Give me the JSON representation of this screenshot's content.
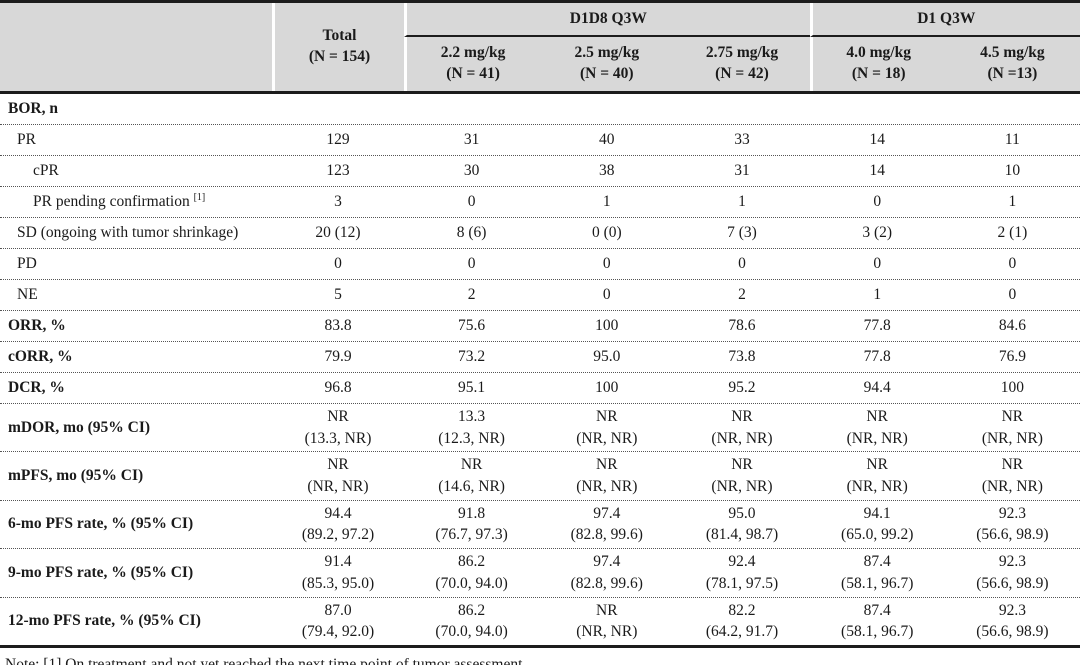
{
  "table": {
    "header": {
      "total": "Total\n(N = 154)",
      "groups": [
        {
          "label": "D1D8 Q3W",
          "cols": [
            "2.2 mg/kg\n(N = 41)",
            "2.5 mg/kg\n(N = 40)",
            "2.75 mg/kg\n(N = 42)"
          ]
        },
        {
          "label": "D1 Q3W",
          "cols": [
            "4.0 mg/kg\n(N = 18)",
            "4.5 mg/kg\n(N =13)"
          ]
        }
      ]
    },
    "rows": [
      {
        "label": "BOR, n",
        "bold": true,
        "indent": 0,
        "cells": [
          "",
          "",
          "",
          "",
          "",
          ""
        ]
      },
      {
        "label": "PR",
        "indent": 1,
        "cells": [
          "129",
          "31",
          "40",
          "33",
          "14",
          "11"
        ]
      },
      {
        "label": "cPR",
        "indent": 2,
        "cells": [
          "123",
          "30",
          "38",
          "31",
          "14",
          "10"
        ]
      },
      {
        "label": "PR pending confirmation",
        "sup": "[1]",
        "indent": 2,
        "cells": [
          "3",
          "0",
          "1",
          "1",
          "0",
          "1"
        ]
      },
      {
        "label": "SD (ongoing with tumor shrinkage)",
        "indent": 1,
        "cells": [
          "20 (12)",
          "8 (6)",
          "0 (0)",
          "7 (3)",
          "3 (2)",
          "2 (1)"
        ]
      },
      {
        "label": "PD",
        "indent": 1,
        "cells": [
          "0",
          "0",
          "0",
          "0",
          "0",
          "0"
        ]
      },
      {
        "label": "NE",
        "indent": 1,
        "cells": [
          "5",
          "2",
          "0",
          "2",
          "1",
          "0"
        ]
      },
      {
        "label": "ORR, %",
        "bold": true,
        "indent": 0,
        "cells": [
          "83.8",
          "75.6",
          "100",
          "78.6",
          "77.8",
          "84.6"
        ]
      },
      {
        "label": "cORR, %",
        "bold": true,
        "indent": 0,
        "cells": [
          "79.9",
          "73.2",
          "95.0",
          "73.8",
          "77.8",
          "76.9"
        ]
      },
      {
        "label": "DCR, %",
        "bold": true,
        "indent": 0,
        "cells": [
          "96.8",
          "95.1",
          "100",
          "95.2",
          "94.4",
          "100"
        ]
      },
      {
        "label": "mDOR, mo (95% CI)",
        "bold": true,
        "indent": 0,
        "cells": [
          "NR\n(13.3, NR)",
          "13.3\n(12.3, NR)",
          "NR\n(NR, NR)",
          "NR\n(NR, NR)",
          "NR\n(NR, NR)",
          "NR\n(NR, NR)"
        ]
      },
      {
        "label": "mPFS, mo (95% CI)",
        "bold": true,
        "indent": 0,
        "cells": [
          "NR\n(NR, NR)",
          "NR\n(14.6, NR)",
          "NR\n(NR, NR)",
          "NR\n(NR, NR)",
          "NR\n(NR, NR)",
          "NR\n(NR, NR)"
        ]
      },
      {
        "label": "6-mo PFS rate, % (95% CI)",
        "bold": true,
        "indent": 0,
        "cells": [
          "94.4\n(89.2, 97.2)",
          "91.8\n(76.7, 97.3)",
          "97.4\n(82.8, 99.6)",
          "95.0\n(81.4, 98.7)",
          "94.1\n(65.0, 99.2)",
          "92.3\n(56.6, 98.9)"
        ]
      },
      {
        "label": "9-mo PFS rate, % (95% CI)",
        "bold": true,
        "indent": 0,
        "cells": [
          "91.4\n(85.3, 95.0)",
          "86.2\n(70.0, 94.0)",
          "97.4\n(82.8, 99.6)",
          "92.4\n(78.1, 97.5)",
          "87.4\n(58.1, 96.7)",
          "92.3\n(56.6, 98.9)"
        ]
      },
      {
        "label": "12-mo PFS rate, % (95% CI)",
        "bold": true,
        "indent": 0,
        "cells": [
          "87.0\n(79.4, 92.0)",
          "86.2\n(70.0, 94.0)",
          "NR\n(NR, NR)",
          "82.2\n(64.2, 91.7)",
          "87.4\n(58.1, 96.7)",
          "92.3\n(56.6, 98.9)"
        ]
      }
    ],
    "note": "Note: [1] On treatment and not yet reached the next time point of tumor assessment."
  },
  "colors": {
    "header_bg": "#d8d8d8",
    "text": "#1a1a1a",
    "thick_rule": "#1c1c1c",
    "dotted_rule": "#555555"
  }
}
